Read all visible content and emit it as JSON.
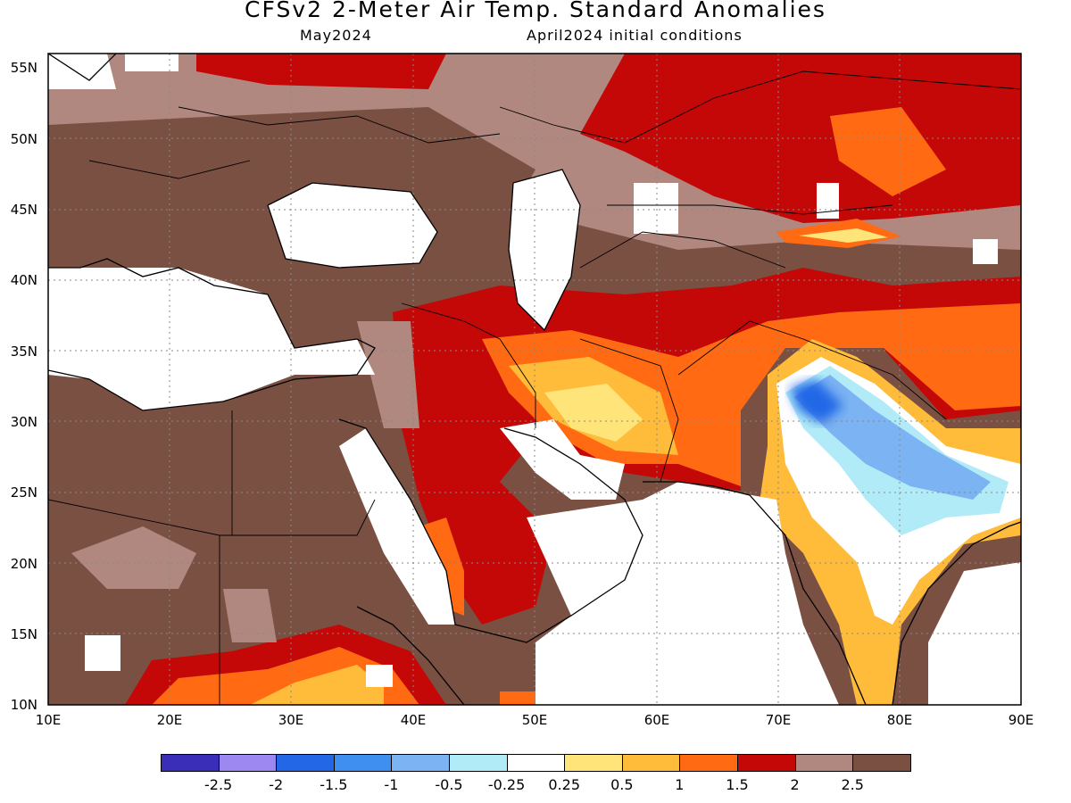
{
  "title": "CFSv2 2-Meter Air Temp. Standard Anomalies",
  "subtitle_left": "May2024",
  "subtitle_right": "April2024 initial conditions",
  "lon_labels": [
    "10E",
    "20E",
    "30E",
    "40E",
    "50E",
    "60E",
    "70E",
    "80E",
    "90E"
  ],
  "lat_labels": [
    "55N",
    "50N",
    "45N",
    "40N",
    "35N",
    "30N",
    "25N",
    "20N",
    "15N",
    "10N"
  ],
  "legend": {
    "colors": [
      "#3a2db8",
      "#9d88f2",
      "#2367e6",
      "#3f8ff0",
      "#7cb3f2",
      "#b1ebf8",
      "#ffffff",
      "#ffe47a",
      "#ffbb3a",
      "#ff6a12",
      "#c40707",
      "#b08880",
      "#7a5043"
    ],
    "labels": [
      "-2.5",
      "-2",
      "-1.5",
      "-1",
      "-0.5",
      "-0.25",
      "0.25",
      "0.5",
      "1",
      "1.5",
      "2",
      "2.5"
    ]
  }
}
